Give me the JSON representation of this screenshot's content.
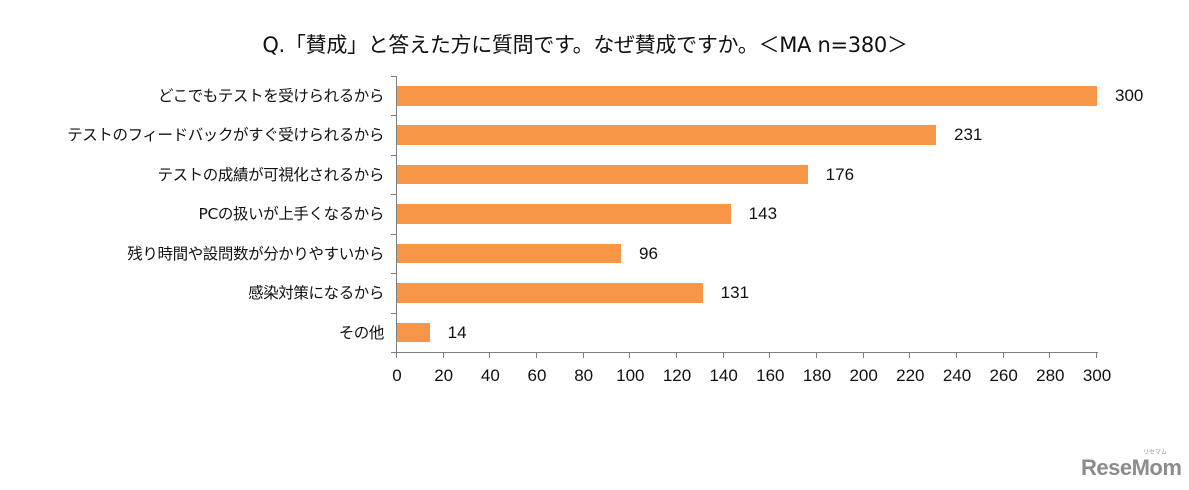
{
  "chart_data": {
    "type": "bar",
    "orientation": "horizontal",
    "title": "Q.「賛成」と答えた方に質問です。なぜ賛成ですか。＜MA n=380＞",
    "categories": [
      "どこでもテストを受けられるから",
      "テストのフィードバックがすぐ受けられるから",
      "テストの成績が可視化されるから",
      "PCの扱いが上手くなるから",
      "残り時間や設問数が分かりやすいから",
      "感染対策になるから",
      "その他"
    ],
    "values": [
      300,
      231,
      176,
      143,
      96,
      131,
      14
    ],
    "xlabel": "",
    "ylabel": "",
    "xlim": [
      0,
      300
    ],
    "x_ticks": [
      0,
      20,
      40,
      60,
      80,
      100,
      120,
      140,
      160,
      180,
      200,
      220,
      240,
      260,
      280,
      300
    ],
    "grid": false,
    "legend": null,
    "data_labels": true,
    "bar_color": "#f79646"
  },
  "header": {
    "title": "Q.「賛成」と答えた方に質問です。なぜ賛成ですか。＜MA n=380＞"
  },
  "bars": [
    {
      "label": "どこでもテストを受けられるから",
      "value": "300"
    },
    {
      "label": "テストのフィードバックがすぐ受けられるから",
      "value": "231"
    },
    {
      "label": "テストの成績が可視化されるから",
      "value": "176"
    },
    {
      "label": "PCの扱いが上手くなるから",
      "value": "143"
    },
    {
      "label": "残り時間や設問数が分かりやすいから",
      "value": "96"
    },
    {
      "label": "感染対策になるから",
      "value": "131"
    },
    {
      "label": "その他",
      "value": "14"
    }
  ],
  "x_axis": {
    "ticks": [
      "0",
      "20",
      "40",
      "60",
      "80",
      "100",
      "120",
      "140",
      "160",
      "180",
      "200",
      "220",
      "240",
      "260",
      "280",
      "300"
    ]
  },
  "logo": {
    "main": "ReseMom",
    "kana": "リセマム"
  },
  "colors": {
    "bar": "#f79646",
    "axis": "#7f7f7f",
    "text": "#111111",
    "logo": "#8c8c8c"
  }
}
